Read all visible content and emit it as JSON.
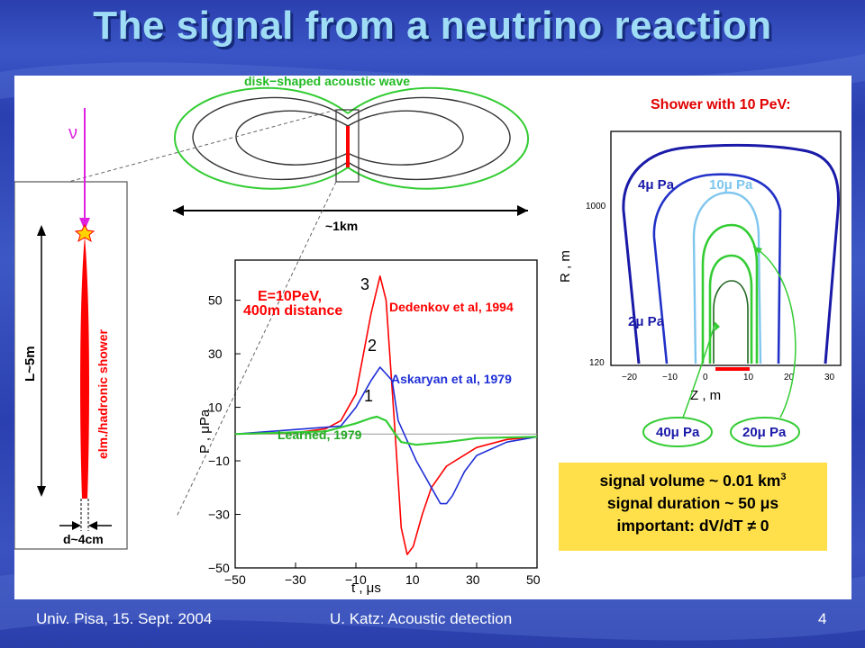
{
  "slide": {
    "title": "The signal from a neutrino reaction",
    "footer_left": "Univ. Pisa, 15. Sept. 2004",
    "footer_center": "U. Katz: Acoustic detection",
    "page_number": "4"
  },
  "colors": {
    "background": "#2f47b8",
    "title_text": "#9fdcf5",
    "shower_red": "#ff0000",
    "wave_green": "#33cc33",
    "neutrino_magenta": "#e020e0",
    "curve_blue": "#1f2fd6",
    "info_box": "#ffe04a"
  },
  "geometry_diagram": {
    "neutrino_symbol": "ν",
    "wave_label": "disk−shaped acoustic wave",
    "distance_label": "~1km",
    "length_label": "L~5m",
    "shower_label": "elm./hadronic shower",
    "diameter_label": "d~4cm"
  },
  "pressure_plot": {
    "energy_label": "E=10PeV,",
    "distance_label": "400m distance",
    "ylabel": "P , μPa",
    "xlabel": "t , μs",
    "x_ticks": [
      "−50",
      "−30",
      "−10",
      "10",
      "30",
      "50"
    ],
    "y_ticks": [
      "50",
      "30",
      "10",
      "−10",
      "−30",
      "−50"
    ],
    "curve_numbers": [
      "3",
      "2",
      "1"
    ],
    "model_labels": [
      "Dedenkov et al, 1994",
      "Askaryan et al, 1979",
      "Learned, 1979"
    ]
  },
  "contour_plot": {
    "title": "Shower with 10 PeV:",
    "ylabel": "R , m",
    "xlabel": "Z , m",
    "y_ticks": [
      "1000",
      "120"
    ],
    "x_ticks": [
      "−20",
      "−10",
      "0",
      "10",
      "20",
      "30"
    ],
    "contour_labels": [
      "4μ Pa",
      "10μ Pa",
      "2μ Pa",
      "40μ Pa",
      "20μ Pa"
    ]
  },
  "info": {
    "line1": "signal volume ~ 0.01 km",
    "line1_sup": "3",
    "line2": "signal duration ~ 50 μs",
    "line3": "important:   dV/dT ≠ 0"
  },
  "chart_data": {
    "type": "line",
    "x_label": "t , μs",
    "y_label": "P , μPa",
    "xlim": [
      -50,
      50
    ],
    "ylim": [
      -50,
      65
    ],
    "series": [
      {
        "name": "Dedenkov et al, 1994",
        "x": [
          -50,
          -30,
          -20,
          -15,
          -10,
          -5,
          -2,
          0,
          3,
          5,
          7,
          9,
          12,
          15,
          20,
          30,
          40,
          50
        ],
        "y": [
          0,
          0.5,
          2,
          5,
          15,
          45,
          59,
          50,
          0,
          -35,
          -45,
          -42,
          -30,
          -20,
          -12,
          -5,
          -2,
          -1
        ]
      },
      {
        "name": "Askaryan et al, 1979",
        "x": [
          -50,
          -15,
          -10,
          -5,
          -2,
          2,
          4,
          10,
          15,
          18,
          20,
          22,
          26,
          30,
          40,
          50
        ],
        "y": [
          0,
          3,
          10,
          20,
          25,
          20,
          5,
          -10,
          -20,
          -26,
          -26,
          -23,
          -14,
          -8,
          -3,
          -1
        ]
      },
      {
        "name": "Learned, 1979",
        "x": [
          -50,
          -20,
          -10,
          -5,
          -3,
          0,
          3,
          5,
          10,
          20,
          30,
          50
        ],
        "y": [
          0,
          1,
          4,
          6,
          6.5,
          5,
          0,
          -3,
          -4,
          -3,
          -1.5,
          -1
        ]
      }
    ]
  }
}
